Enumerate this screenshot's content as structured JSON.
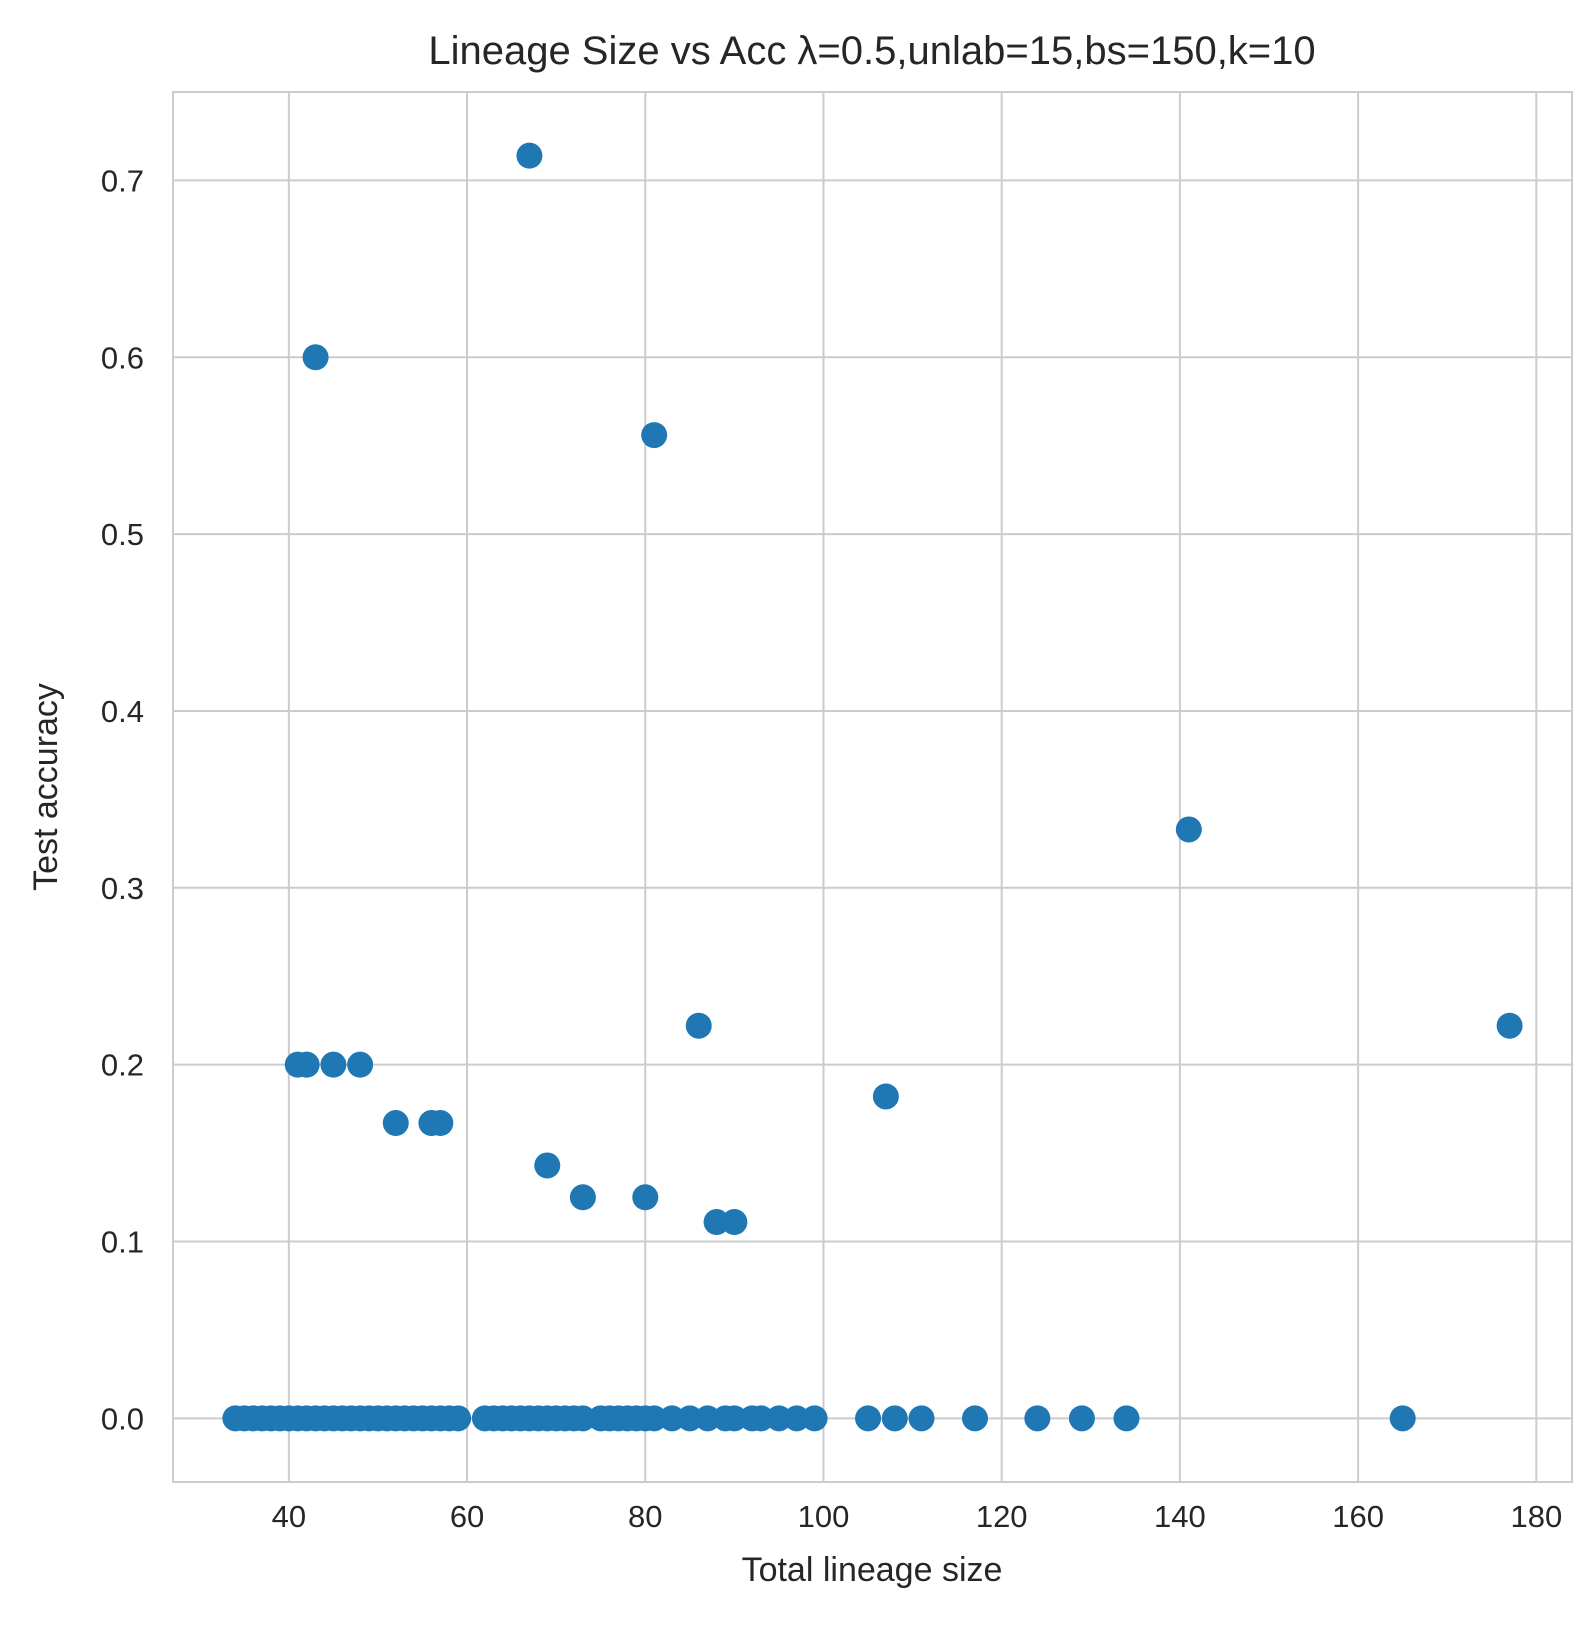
{
  "chart_data": {
    "type": "scatter",
    "title": "Lineage Size vs Acc λ=0.5,unlab=15,bs=150,k=10",
    "xlabel": "Total lineage size",
    "ylabel": "Test accuracy",
    "xlim": [
      27,
      184
    ],
    "ylim": [
      -0.036,
      0.75
    ],
    "xticks": [
      40,
      60,
      80,
      100,
      120,
      140,
      160,
      180
    ],
    "yticks": [
      0.0,
      0.1,
      0.2,
      0.3,
      0.4,
      0.5,
      0.6,
      0.7
    ],
    "xtick_labels": [
      "40",
      "60",
      "80",
      "100",
      "120",
      "140",
      "160",
      "180"
    ],
    "ytick_labels": [
      "0.0",
      "0.1",
      "0.2",
      "0.3",
      "0.4",
      "0.5",
      "0.6",
      "0.7"
    ],
    "grid": true,
    "marker_color": "#1f77b4",
    "points": [
      {
        "x": 34,
        "y": 0
      },
      {
        "x": 35,
        "y": 0
      },
      {
        "x": 36,
        "y": 0
      },
      {
        "x": 37,
        "y": 0
      },
      {
        "x": 38,
        "y": 0
      },
      {
        "x": 39,
        "y": 0
      },
      {
        "x": 40,
        "y": 0
      },
      {
        "x": 41,
        "y": 0
      },
      {
        "x": 42,
        "y": 0
      },
      {
        "x": 43,
        "y": 0
      },
      {
        "x": 44,
        "y": 0
      },
      {
        "x": 45,
        "y": 0
      },
      {
        "x": 46,
        "y": 0
      },
      {
        "x": 47,
        "y": 0
      },
      {
        "x": 48,
        "y": 0
      },
      {
        "x": 49,
        "y": 0
      },
      {
        "x": 50,
        "y": 0
      },
      {
        "x": 51,
        "y": 0
      },
      {
        "x": 52,
        "y": 0
      },
      {
        "x": 53,
        "y": 0
      },
      {
        "x": 54,
        "y": 0
      },
      {
        "x": 55,
        "y": 0
      },
      {
        "x": 56,
        "y": 0
      },
      {
        "x": 57,
        "y": 0
      },
      {
        "x": 58,
        "y": 0
      },
      {
        "x": 59,
        "y": 0
      },
      {
        "x": 62,
        "y": 0
      },
      {
        "x": 63,
        "y": 0
      },
      {
        "x": 64,
        "y": 0
      },
      {
        "x": 65,
        "y": 0
      },
      {
        "x": 66,
        "y": 0
      },
      {
        "x": 67,
        "y": 0
      },
      {
        "x": 68,
        "y": 0
      },
      {
        "x": 69,
        "y": 0
      },
      {
        "x": 70,
        "y": 0
      },
      {
        "x": 71,
        "y": 0
      },
      {
        "x": 72,
        "y": 0
      },
      {
        "x": 73,
        "y": 0
      },
      {
        "x": 75,
        "y": 0
      },
      {
        "x": 76,
        "y": 0
      },
      {
        "x": 77,
        "y": 0
      },
      {
        "x": 78,
        "y": 0
      },
      {
        "x": 79,
        "y": 0
      },
      {
        "x": 80,
        "y": 0
      },
      {
        "x": 81,
        "y": 0
      },
      {
        "x": 83,
        "y": 0
      },
      {
        "x": 85,
        "y": 0
      },
      {
        "x": 87,
        "y": 0
      },
      {
        "x": 89,
        "y": 0
      },
      {
        "x": 90,
        "y": 0
      },
      {
        "x": 92,
        "y": 0
      },
      {
        "x": 93,
        "y": 0
      },
      {
        "x": 95,
        "y": 0
      },
      {
        "x": 97,
        "y": 0
      },
      {
        "x": 99,
        "y": 0
      },
      {
        "x": 105,
        "y": 0
      },
      {
        "x": 108,
        "y": 0
      },
      {
        "x": 111,
        "y": 0
      },
      {
        "x": 117,
        "y": 0
      },
      {
        "x": 124,
        "y": 0
      },
      {
        "x": 129,
        "y": 0
      },
      {
        "x": 134,
        "y": 0
      },
      {
        "x": 165,
        "y": 0
      },
      {
        "x": 41,
        "y": 0.2
      },
      {
        "x": 42,
        "y": 0.2
      },
      {
        "x": 45,
        "y": 0.2
      },
      {
        "x": 48,
        "y": 0.2
      },
      {
        "x": 52,
        "y": 0.167
      },
      {
        "x": 56,
        "y": 0.167
      },
      {
        "x": 57,
        "y": 0.167
      },
      {
        "x": 69,
        "y": 0.143
      },
      {
        "x": 73,
        "y": 0.125
      },
      {
        "x": 80,
        "y": 0.125
      },
      {
        "x": 88,
        "y": 0.111
      },
      {
        "x": 90,
        "y": 0.111
      },
      {
        "x": 86,
        "y": 0.222
      },
      {
        "x": 107,
        "y": 0.182
      },
      {
        "x": 141,
        "y": 0.333
      },
      {
        "x": 177,
        "y": 0.222
      },
      {
        "x": 43,
        "y": 0.6
      },
      {
        "x": 81,
        "y": 0.556
      },
      {
        "x": 67,
        "y": 0.714
      }
    ]
  }
}
